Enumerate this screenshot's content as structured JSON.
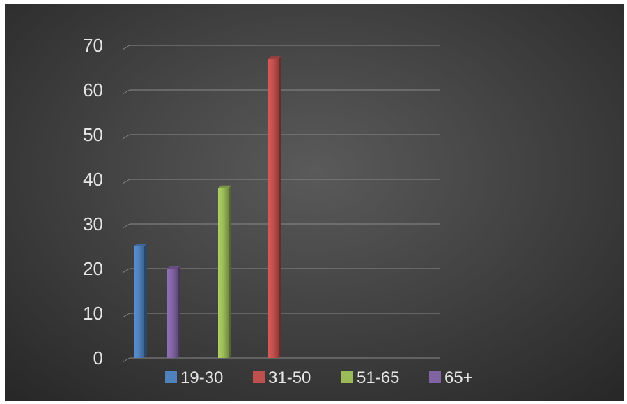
{
  "chart_data": {
    "type": "bar",
    "title": "",
    "xlabel": "",
    "ylabel": "",
    "ylim": [
      0,
      70
    ],
    "yticks": [
      0,
      10,
      20,
      30,
      40,
      50,
      60,
      70
    ],
    "grid": true,
    "legend_position": "bottom",
    "series": [
      {
        "name": "19-30",
        "value": 25,
        "color": "#4f81bd"
      },
      {
        "name": "65+",
        "value": 20,
        "color": "#8064a2"
      },
      {
        "name": "51-65",
        "value": 38,
        "color": "#9bbb59"
      },
      {
        "name": "31-50",
        "value": 67,
        "color": "#c0504d"
      }
    ],
    "legend": [
      {
        "name": "19-30",
        "color": "#4f81bd"
      },
      {
        "name": "31-50",
        "color": "#c0504d"
      },
      {
        "name": "51-65",
        "color": "#9bbb59"
      },
      {
        "name": "65+",
        "color": "#8064a2"
      }
    ]
  }
}
